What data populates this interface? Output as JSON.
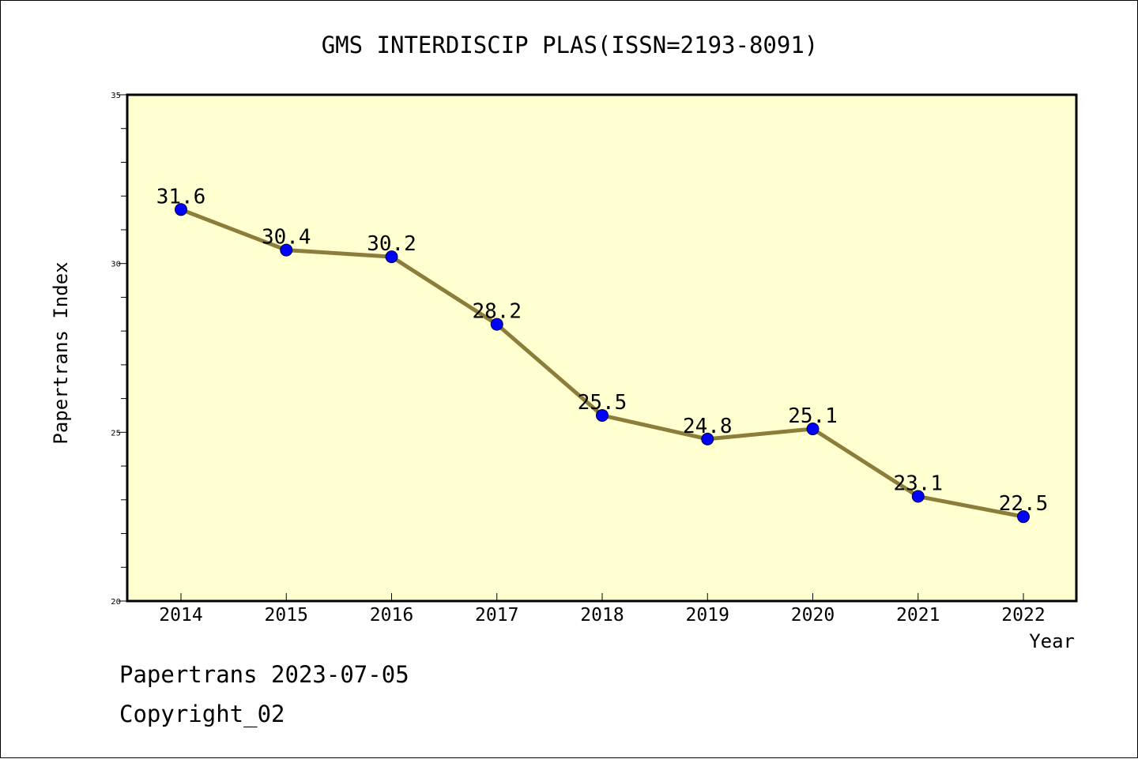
{
  "footer": {
    "date_line": "Papertrans 2023-07-05",
    "copyright": "Copyright_02"
  },
  "chart_data": {
    "type": "line",
    "title": "GMS INTERDISCIP PLAS(ISSN=2193-8091)",
    "xlabel": "Year",
    "ylabel": "Papertrans Index",
    "categories": [
      "2014",
      "2015",
      "2016",
      "2017",
      "2018",
      "2019",
      "2020",
      "2021",
      "2022"
    ],
    "values": [
      31.6,
      30.4,
      30.2,
      28.2,
      25.5,
      24.8,
      25.1,
      23.1,
      22.5
    ],
    "data_labels": [
      "31.6",
      "30.4",
      "30.2",
      "28.2",
      "25.5",
      "24.8",
      "25.1",
      "23.1",
      "22.5"
    ],
    "ylim": [
      20,
      35
    ],
    "yticks": [
      20,
      25,
      30,
      35
    ],
    "ytick_labels": [
      "20",
      "25",
      "30",
      "35"
    ],
    "grid": false,
    "legend": "none",
    "colors": {
      "plot_background": "#ffffd0",
      "line": "#8b7d3a",
      "marker": "#0000ff"
    }
  }
}
